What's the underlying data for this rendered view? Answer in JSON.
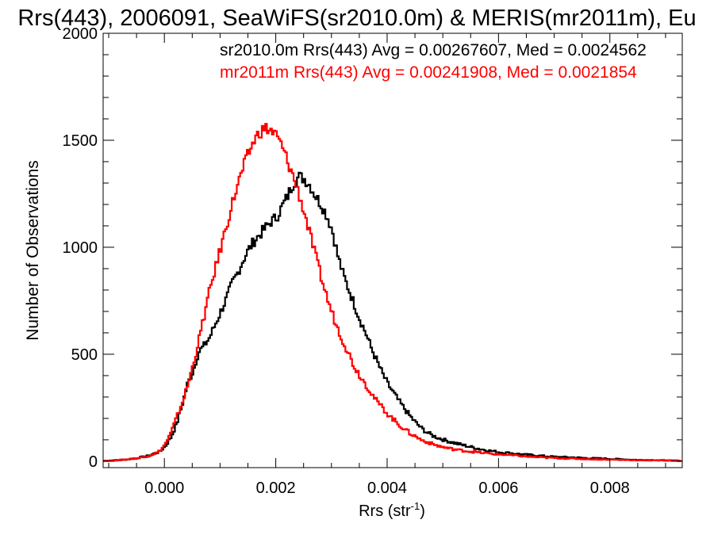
{
  "chart_data": {
    "type": "line",
    "title": "Rrs(443), 2006091, SeaWiFS(sr2010.0m) & MERIS(mr2011m), Eu",
    "xlabel": "Rrs (str",
    "xlabel_sup": "-1",
    "xlabel_close": ")",
    "ylabel": "Number of Observations",
    "xlim": [
      -0.0011,
      0.0093
    ],
    "ylim": [
      -30,
      2000
    ],
    "xticks": [
      0.0,
      0.002,
      0.004,
      0.006,
      0.008
    ],
    "xtick_labels": [
      "0.000",
      "0.002",
      "0.004",
      "0.006",
      "0.008"
    ],
    "yticks": [
      0,
      500,
      1000,
      1500,
      2000
    ],
    "ytick_labels": [
      "0",
      "500",
      "1000",
      "1500",
      "2000"
    ],
    "grid": false,
    "legend_position": "top-right",
    "annotations": [
      {
        "text": "sr2010.0m Rrs(443) Avg = 0.00267607, Med = 0.0024562",
        "color": "#000000"
      },
      {
        "text": "mr2011m Rrs(443) Avg = 0.00241908, Med = 0.0021854",
        "color": "#ff0000"
      }
    ],
    "series": [
      {
        "name": "sr2010.0m",
        "color": "#000000",
        "step": true,
        "points": [
          [
            -0.0011,
            2
          ],
          [
            -0.0009,
            4
          ],
          [
            -0.0007,
            8
          ],
          [
            -0.0005,
            15
          ],
          [
            -0.0003,
            25
          ],
          [
            -0.0001,
            45
          ],
          [
            0.0,
            70
          ],
          [
            0.0001,
            110
          ],
          [
            0.0002,
            170
          ],
          [
            0.0003,
            260
          ],
          [
            0.0004,
            360
          ],
          [
            0.0005,
            420
          ],
          [
            0.0006,
            510
          ],
          [
            0.0007,
            540
          ],
          [
            0.0008,
            580
          ],
          [
            0.0009,
            640
          ],
          [
            0.001,
            700
          ],
          [
            0.0011,
            760
          ],
          [
            0.0012,
            830
          ],
          [
            0.0013,
            880
          ],
          [
            0.0014,
            940
          ],
          [
            0.0015,
            990
          ],
          [
            0.0016,
            1030
          ],
          [
            0.0017,
            1060
          ],
          [
            0.0018,
            1090
          ],
          [
            0.0019,
            1120
          ],
          [
            0.002,
            1140
          ],
          [
            0.0021,
            1190
          ],
          [
            0.0022,
            1240
          ],
          [
            0.0023,
            1300
          ],
          [
            0.0024,
            1330
          ],
          [
            0.0025,
            1320
          ],
          [
            0.0026,
            1290
          ],
          [
            0.0027,
            1240
          ],
          [
            0.0028,
            1200
          ],
          [
            0.0029,
            1150
          ],
          [
            0.003,
            1080
          ],
          [
            0.0031,
            960
          ],
          [
            0.0032,
            870
          ],
          [
            0.0033,
            800
          ],
          [
            0.0034,
            730
          ],
          [
            0.0035,
            660
          ],
          [
            0.0036,
            600
          ],
          [
            0.0037,
            530
          ],
          [
            0.0038,
            470
          ],
          [
            0.0039,
            410
          ],
          [
            0.004,
            360
          ],
          [
            0.0041,
            320
          ],
          [
            0.0042,
            280
          ],
          [
            0.0043,
            245
          ],
          [
            0.0044,
            210
          ],
          [
            0.0045,
            180
          ],
          [
            0.0046,
            155
          ],
          [
            0.0047,
            135
          ],
          [
            0.0048,
            120
          ],
          [
            0.0049,
            110
          ],
          [
            0.005,
            100
          ],
          [
            0.0052,
            85
          ],
          [
            0.0054,
            72
          ],
          [
            0.0056,
            60
          ],
          [
            0.0058,
            50
          ],
          [
            0.006,
            42
          ],
          [
            0.0062,
            38
          ],
          [
            0.0064,
            32
          ],
          [
            0.0066,
            28
          ],
          [
            0.0068,
            24
          ],
          [
            0.007,
            20
          ],
          [
            0.0073,
            18
          ],
          [
            0.0076,
            14
          ],
          [
            0.0079,
            12
          ],
          [
            0.0082,
            9
          ],
          [
            0.0085,
            6
          ],
          [
            0.0088,
            5
          ],
          [
            0.0091,
            3
          ],
          [
            0.0093,
            2
          ]
        ]
      },
      {
        "name": "mr2011m",
        "color": "#ff0000",
        "step": true,
        "points": [
          [
            -0.0011,
            2
          ],
          [
            -0.0009,
            4
          ],
          [
            -0.0007,
            8
          ],
          [
            -0.0005,
            14
          ],
          [
            -0.0003,
            25
          ],
          [
            -0.0001,
            45
          ],
          [
            0.0,
            80
          ],
          [
            0.0001,
            130
          ],
          [
            0.0002,
            200
          ],
          [
            0.0003,
            270
          ],
          [
            0.0004,
            350
          ],
          [
            0.0005,
            450
          ],
          [
            0.0006,
            560
          ],
          [
            0.0007,
            680
          ],
          [
            0.0008,
            800
          ],
          [
            0.0009,
            900
          ],
          [
            0.001,
            1000
          ],
          [
            0.0011,
            1100
          ],
          [
            0.0012,
            1200
          ],
          [
            0.0013,
            1290
          ],
          [
            0.0014,
            1370
          ],
          [
            0.0015,
            1440
          ],
          [
            0.0016,
            1500
          ],
          [
            0.0017,
            1540
          ],
          [
            0.0018,
            1555
          ],
          [
            0.0019,
            1545
          ],
          [
            0.002,
            1520
          ],
          [
            0.0021,
            1470
          ],
          [
            0.0022,
            1400
          ],
          [
            0.0023,
            1330
          ],
          [
            0.0024,
            1250
          ],
          [
            0.0025,
            1160
          ],
          [
            0.0026,
            1060
          ],
          [
            0.0027,
            960
          ],
          [
            0.0028,
            860
          ],
          [
            0.0029,
            770
          ],
          [
            0.003,
            690
          ],
          [
            0.0031,
            620
          ],
          [
            0.0032,
            560
          ],
          [
            0.0033,
            500
          ],
          [
            0.0034,
            440
          ],
          [
            0.0035,
            400
          ],
          [
            0.0036,
            360
          ],
          [
            0.0037,
            320
          ],
          [
            0.0038,
            280
          ],
          [
            0.0039,
            250
          ],
          [
            0.004,
            220
          ],
          [
            0.0041,
            195
          ],
          [
            0.0042,
            170
          ],
          [
            0.0043,
            150
          ],
          [
            0.0044,
            130
          ],
          [
            0.0045,
            115
          ],
          [
            0.0046,
            100
          ],
          [
            0.0047,
            90
          ],
          [
            0.0048,
            80
          ],
          [
            0.0049,
            72
          ],
          [
            0.005,
            65
          ],
          [
            0.0052,
            55
          ],
          [
            0.0054,
            48
          ],
          [
            0.0056,
            42
          ],
          [
            0.0058,
            36
          ],
          [
            0.006,
            32
          ],
          [
            0.0062,
            28
          ],
          [
            0.0064,
            24
          ],
          [
            0.0066,
            20
          ],
          [
            0.0068,
            17
          ],
          [
            0.007,
            15
          ],
          [
            0.0073,
            12
          ],
          [
            0.0076,
            10
          ],
          [
            0.0079,
            8
          ],
          [
            0.0082,
            6
          ],
          [
            0.0085,
            5
          ],
          [
            0.0088,
            4
          ],
          [
            0.0091,
            3
          ],
          [
            0.0093,
            2
          ]
        ]
      }
    ]
  }
}
